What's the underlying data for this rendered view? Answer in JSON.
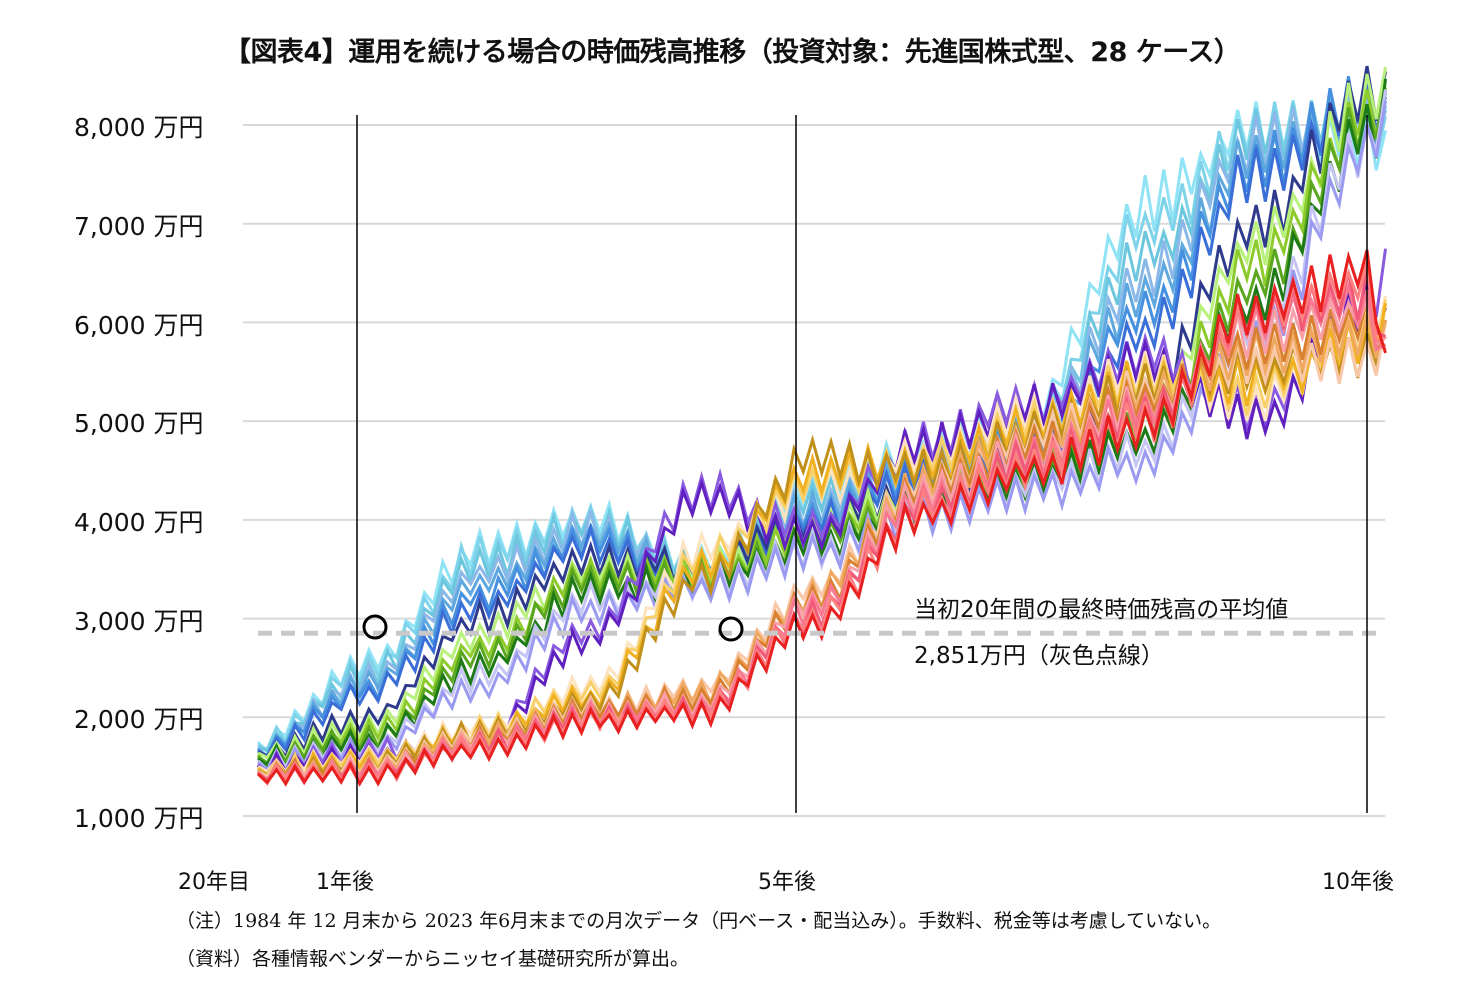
{
  "chart_data": {
    "type": "line",
    "title": "【図表4】運用を続ける場合の時価残高推移（投資対象：先進国株式型、28 ケース）",
    "xlabel": "",
    "ylabel": "",
    "y_unit": "万円",
    "ylim": [
      1000,
      8000
    ],
    "yticks": [
      1000,
      2000,
      3000,
      4000,
      5000,
      6000,
      7000,
      8000
    ],
    "ytick_labels": [
      "1,000 万円",
      "2,000 万円",
      "3,000 万円",
      "4,000 万円",
      "5,000 万円",
      "6,000 万円",
      "7,000 万円",
      "8,000 万円"
    ],
    "xlim_years": [
      0,
      10.25
    ],
    "xtick_labels": [
      {
        "label": "20年目",
        "year": 0
      },
      {
        "label": "1年後",
        "year": 1
      },
      {
        "label": "5年後",
        "year": 5
      },
      {
        "label": "10年後",
        "year": 10
      }
    ],
    "vertical_markers_years": [
      1,
      5,
      10
    ],
    "grid": true,
    "legend": "none",
    "reference_line": {
      "value": 2851,
      "style": "dashed",
      "color": "#c8c8c8",
      "label_line1": "当初20年間の最終時価残高の平均値",
      "label_line2": "2,851万円（灰色点線）"
    },
    "circle_markers": [
      {
        "year": 1.17,
        "value": 2890
      },
      {
        "year": 4.4,
        "value": 2870
      }
    ],
    "series_count": 28,
    "anchor_years": [
      0,
      1,
      2,
      3,
      4,
      5,
      6,
      7,
      8,
      9,
      10,
      10.2
    ],
    "series": [
      {
        "name": "case-01",
        "color": "#8fe3f5",
        "values": [
          1750,
          2550,
          3700,
          4000,
          3550,
          4300,
          4700,
          5150,
          7200,
          7950,
          7900,
          7800
        ]
      },
      {
        "name": "case-02",
        "color": "#7ed3ea",
        "values": [
          1720,
          2500,
          3650,
          3980,
          3500,
          4250,
          4650,
          5000,
          6950,
          7900,
          7950,
          7850
        ]
      },
      {
        "name": "case-03",
        "color": "#6cc7de",
        "values": [
          1700,
          2450,
          3550,
          3950,
          3480,
          4200,
          4600,
          4950,
          6700,
          7850,
          8050,
          7900
        ]
      },
      {
        "name": "case-04",
        "color": "#8bb8e8",
        "values": [
          1690,
          2400,
          3450,
          3900,
          3450,
          4150,
          4550,
          4900,
          6500,
          7800,
          8100,
          7950
        ]
      },
      {
        "name": "case-05",
        "color": "#5ea8e0",
        "values": [
          1680,
          2350,
          3350,
          3850,
          3420,
          4100,
          4500,
          4850,
          6300,
          7700,
          8150,
          8000
        ]
      },
      {
        "name": "case-06",
        "color": "#4690e0",
        "values": [
          1670,
          2300,
          3250,
          3800,
          3400,
          4050,
          4450,
          4800,
          6100,
          7600,
          8200,
          8050
        ]
      },
      {
        "name": "case-07",
        "color": "#3a6fd8",
        "values": [
          1660,
          2250,
          3150,
          3750,
          3380,
          4000,
          4400,
          4700,
          5900,
          7500,
          8250,
          8100
        ]
      },
      {
        "name": "case-08",
        "color": "#2e3a8c",
        "values": [
          1650,
          2000,
          3000,
          3600,
          3550,
          3950,
          4350,
          4600,
          5300,
          7000,
          8300,
          8350
        ]
      },
      {
        "name": "case-09",
        "color": "#b7f07a",
        "values": [
          1640,
          1900,
          2850,
          3500,
          3500,
          3900,
          4300,
          4550,
          5100,
          6800,
          8200,
          8300
        ]
      },
      {
        "name": "case-10",
        "color": "#8dcb2c",
        "values": [
          1620,
          1850,
          2700,
          3450,
          3450,
          3850,
          4250,
          4500,
          5000,
          6600,
          8100,
          8250
        ]
      },
      {
        "name": "case-11",
        "color": "#5aa61e",
        "values": [
          1600,
          1800,
          2600,
          3400,
          3400,
          3800,
          4200,
          4450,
          4900,
          6400,
          8000,
          8200
        ]
      },
      {
        "name": "case-12",
        "color": "#1e7a16",
        "values": [
          1580,
          1750,
          2500,
          3300,
          3380,
          3750,
          4150,
          4400,
          4800,
          6200,
          7900,
          8150
        ]
      },
      {
        "name": "case-13",
        "color": "#c5c5f5",
        "values": [
          1560,
          1700,
          2400,
          3200,
          3350,
          3700,
          4100,
          4350,
          4700,
          6000,
          7800,
          8100
        ]
      },
      {
        "name": "case-14",
        "color": "#9a9af0",
        "values": [
          1540,
          1680,
          2300,
          3100,
          3300,
          3650,
          4050,
          4300,
          4600,
          5800,
          7700,
          8050
        ]
      },
      {
        "name": "case-15",
        "color": "#8a5ae0",
        "values": [
          1520,
          1660,
          1800,
          2900,
          4300,
          3900,
          4800,
          5200,
          5700,
          5100,
          6100,
          6500
        ]
      },
      {
        "name": "case-16",
        "color": "#6020c0",
        "values": [
          1510,
          1620,
          1780,
          2800,
          4200,
          3850,
          4750,
          5150,
          5600,
          5000,
          6200,
          5900
        ]
      },
      {
        "name": "case-17",
        "color": "#fde3c0",
        "values": [
          1500,
          1600,
          1900,
          2300,
          3700,
          4300,
          4650,
          5050,
          5500,
          5200,
          6000,
          6100
        ]
      },
      {
        "name": "case-18",
        "color": "#f8d06a",
        "values": [
          1490,
          1580,
          1880,
          2250,
          3600,
          4400,
          4600,
          5000,
          5450,
          5300,
          5900,
          6000
        ]
      },
      {
        "name": "case-19",
        "color": "#f0b020",
        "values": [
          1480,
          1560,
          1860,
          2200,
          3500,
          4500,
          4550,
          4950,
          5400,
          5400,
          5800,
          5950
        ]
      },
      {
        "name": "case-20",
        "color": "#c0901a",
        "values": [
          1470,
          1540,
          1840,
          2150,
          3400,
          4600,
          4500,
          4900,
          5350,
          5500,
          5700,
          5900
        ]
      },
      {
        "name": "case-21",
        "color": "#f8c8a8",
        "values": [
          1460,
          1520,
          1820,
          2100,
          2300,
          3300,
          4400,
          4850,
          5300,
          5600,
          5600,
          5800
        ]
      },
      {
        "name": "case-22",
        "color": "#f0a860",
        "values": [
          1455,
          1500,
          1800,
          2080,
          2250,
          3250,
          4350,
          4800,
          5250,
          5700,
          5900,
          5750
        ]
      },
      {
        "name": "case-23",
        "color": "#d88030",
        "values": [
          1450,
          1480,
          1780,
          2060,
          2200,
          3200,
          4300,
          4750,
          5200,
          5800,
          6000,
          5700
        ]
      },
      {
        "name": "case-24",
        "color": "#f8a0a8",
        "values": [
          1445,
          1470,
          1760,
          2040,
          2150,
          3150,
          4250,
          4700,
          5150,
          5900,
          6100,
          5650
        ]
      },
      {
        "name": "case-25",
        "color": "#f87890",
        "values": [
          1440,
          1460,
          1740,
          2020,
          2100,
          3100,
          4200,
          4650,
          5100,
          6000,
          6200,
          5600
        ]
      },
      {
        "name": "case-26",
        "color": "#f05a78",
        "values": [
          1435,
          1450,
          1720,
          2000,
          2080,
          3050,
          4150,
          4600,
          5050,
          6050,
          6300,
          5550
        ]
      },
      {
        "name": "case-27",
        "color": "#ff8080",
        "values": [
          1430,
          1440,
          1700,
          1980,
          2060,
          3000,
          4100,
          4550,
          5000,
          6100,
          6400,
          5500
        ]
      },
      {
        "name": "case-28",
        "color": "#e82020",
        "values": [
          1425,
          1430,
          1680,
          1960,
          2040,
          2950,
          4050,
          4500,
          4950,
          6150,
          6500,
          5450
        ]
      }
    ]
  },
  "labels": {
    "title": "【図表4】運用を続ける場合の時価残高推移（投資対象：先進国株式型、28 ケース）",
    "y8000": "8,000 万円",
    "y7000": "7,000 万円",
    "y6000": "6,000 万円",
    "y5000": "5,000 万円",
    "y4000": "4,000 万円",
    "y3000": "3,000 万円",
    "y2000": "2,000 万円",
    "y1000": "1,000 万円",
    "x0": "20年目",
    "x1": "1年後",
    "x5": "5年後",
    "x10": "10年後",
    "annot1": "当初20年間の最終時価残高の平均値",
    "annot2": "2,851万円（灰色点線）",
    "note": "（注）1984 年 12 月末から 2023 年6月末までの月次データ（円ベース・配当込み）。手数料、税金等は考慮していない。",
    "source": "（資料）各種情報ベンダーからニッセイ基礎研究所が算出。"
  }
}
